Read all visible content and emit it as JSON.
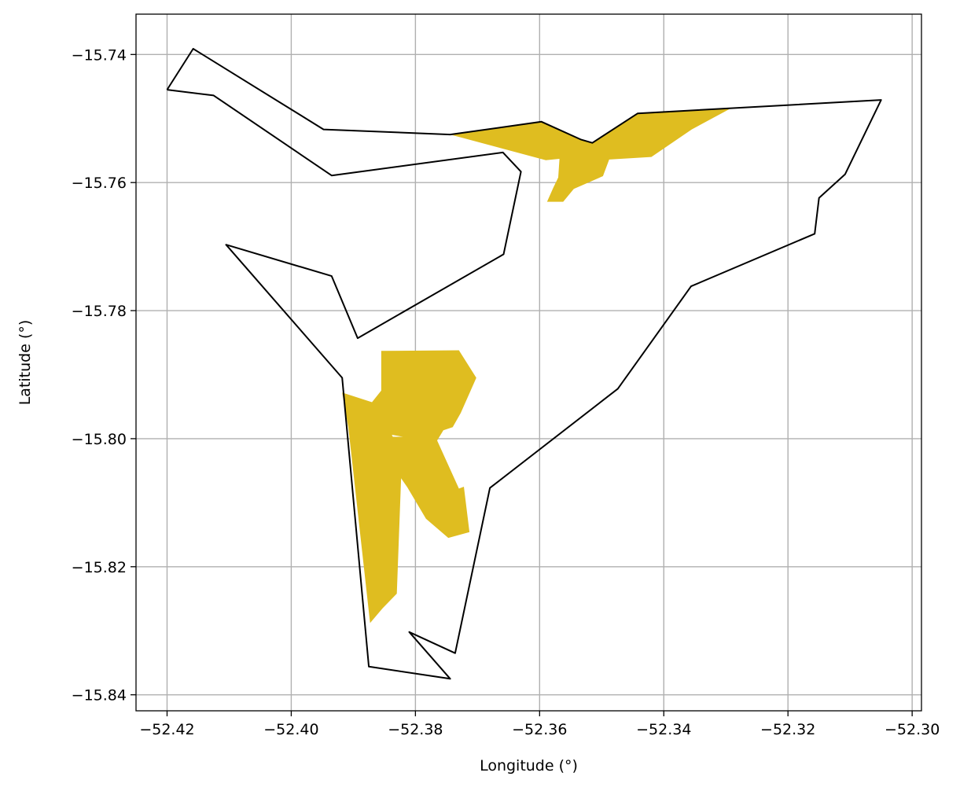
{
  "chart_data": {
    "type": "map",
    "title": "",
    "xlabel": "Longitude (°)",
    "ylabel": "Latitude (°)",
    "xlim": [
      -52.425,
      -52.2985
    ],
    "ylim": [
      -15.8425,
      -15.7337
    ],
    "xticks": [
      -52.42,
      -52.4,
      -52.38,
      -52.36,
      -52.34,
      -52.32,
      -52.3
    ],
    "xtick_labels": [
      "−52.42",
      "−52.40",
      "−52.38",
      "−52.36",
      "−52.34",
      "−52.32",
      "−52.30"
    ],
    "yticks": [
      -15.74,
      -15.76,
      -15.78,
      -15.8,
      -15.82,
      -15.84
    ],
    "ytick_labels": [
      "−15.74",
      "−15.76",
      "−15.78",
      "−15.80",
      "−15.82",
      "−15.84"
    ],
    "grid": true,
    "colors": {
      "boundary": "#000000",
      "fill": "#dfbd20",
      "grid": "#b0b0b0"
    },
    "boundary": [
      [
        -52.42,
        -15.7455
      ],
      [
        -52.4158,
        -15.7391
      ],
      [
        -52.3948,
        -15.7517
      ],
      [
        -52.3744,
        -15.7525
      ],
      [
        -52.3597,
        -15.7505
      ],
      [
        -52.3533,
        -15.7533
      ],
      [
        -52.3515,
        -15.7538
      ],
      [
        -52.3442,
        -15.7492
      ],
      [
        -52.305,
        -15.7471
      ],
      [
        -52.3108,
        -15.7587
      ],
      [
        -52.315,
        -15.7624
      ],
      [
        -52.3157,
        -15.768
      ],
      [
        -52.3356,
        -15.7762
      ],
      [
        -52.3474,
        -15.7922
      ],
      [
        -52.368,
        -15.8077
      ],
      [
        -52.3736,
        -15.8335
      ],
      [
        -52.381,
        -15.8302
      ],
      [
        -52.3744,
        -15.8375
      ],
      [
        -52.3875,
        -15.8356
      ],
      [
        -52.3918,
        -15.7905
      ],
      [
        -52.4105,
        -15.7697
      ],
      [
        -52.3935,
        -15.7746
      ],
      [
        -52.3893,
        -15.7843
      ],
      [
        -52.3658,
        -15.7712
      ],
      [
        -52.363,
        -15.7583
      ],
      [
        -52.3659,
        -15.7553
      ],
      [
        -52.3935,
        -15.7589
      ],
      [
        -52.4125,
        -15.7464
      ],
      [
        -52.42,
        -15.7455
      ]
    ],
    "filled_regions": [
      {
        "points": [
          [
            -52.3744,
            -15.7525
          ],
          [
            -52.3597,
            -15.7505
          ],
          [
            -52.3533,
            -15.7533
          ],
          [
            -52.3515,
            -15.7538
          ],
          [
            -52.3442,
            -15.7492
          ],
          [
            -52.3292,
            -15.7484
          ],
          [
            -52.3355,
            -15.7517
          ],
          [
            -52.342,
            -15.756
          ],
          [
            -52.3488,
            -15.7564
          ],
          [
            -52.3498,
            -15.759
          ],
          [
            -52.3545,
            -15.761
          ],
          [
            -52.3562,
            -15.763
          ],
          [
            -52.3588,
            -15.763
          ],
          [
            -52.3578,
            -15.7608
          ],
          [
            -52.357,
            -15.7592
          ],
          [
            -52.3568,
            -15.7563
          ],
          [
            -52.359,
            -15.7565
          ]
        ]
      },
      {
        "points": [
          [
            -52.3918,
            -15.7928
          ],
          [
            -52.387,
            -15.7943
          ],
          [
            -52.3855,
            -15.7925
          ],
          [
            -52.3855,
            -15.7863
          ],
          [
            -52.373,
            -15.7862
          ],
          [
            -52.3702,
            -15.7905
          ],
          [
            -52.3727,
            -15.796
          ],
          [
            -52.374,
            -15.7982
          ],
          [
            -52.3755,
            -15.7987
          ],
          [
            -52.3765,
            -15.8003
          ],
          [
            -52.373,
            -15.8078
          ],
          [
            -52.3722,
            -15.8075
          ],
          [
            -52.3713,
            -15.8146
          ],
          [
            -52.3747,
            -15.8155
          ],
          [
            -52.3783,
            -15.8125
          ],
          [
            -52.3813,
            -15.8076
          ],
          [
            -52.3823,
            -15.8062
          ],
          [
            -52.3838,
            -15.806
          ],
          [
            -52.3845,
            -15.7997
          ],
          [
            -52.382,
            -15.7997
          ],
          [
            -52.3838,
            -15.7994
          ],
          [
            -52.3823,
            -15.8024
          ],
          [
            -52.3823,
            -15.806
          ],
          [
            -52.383,
            -15.8242
          ],
          [
            -52.3853,
            -15.8265
          ],
          [
            -52.3873,
            -15.8288
          ],
          [
            -52.3908,
            -15.7983
          ]
        ]
      }
    ]
  }
}
